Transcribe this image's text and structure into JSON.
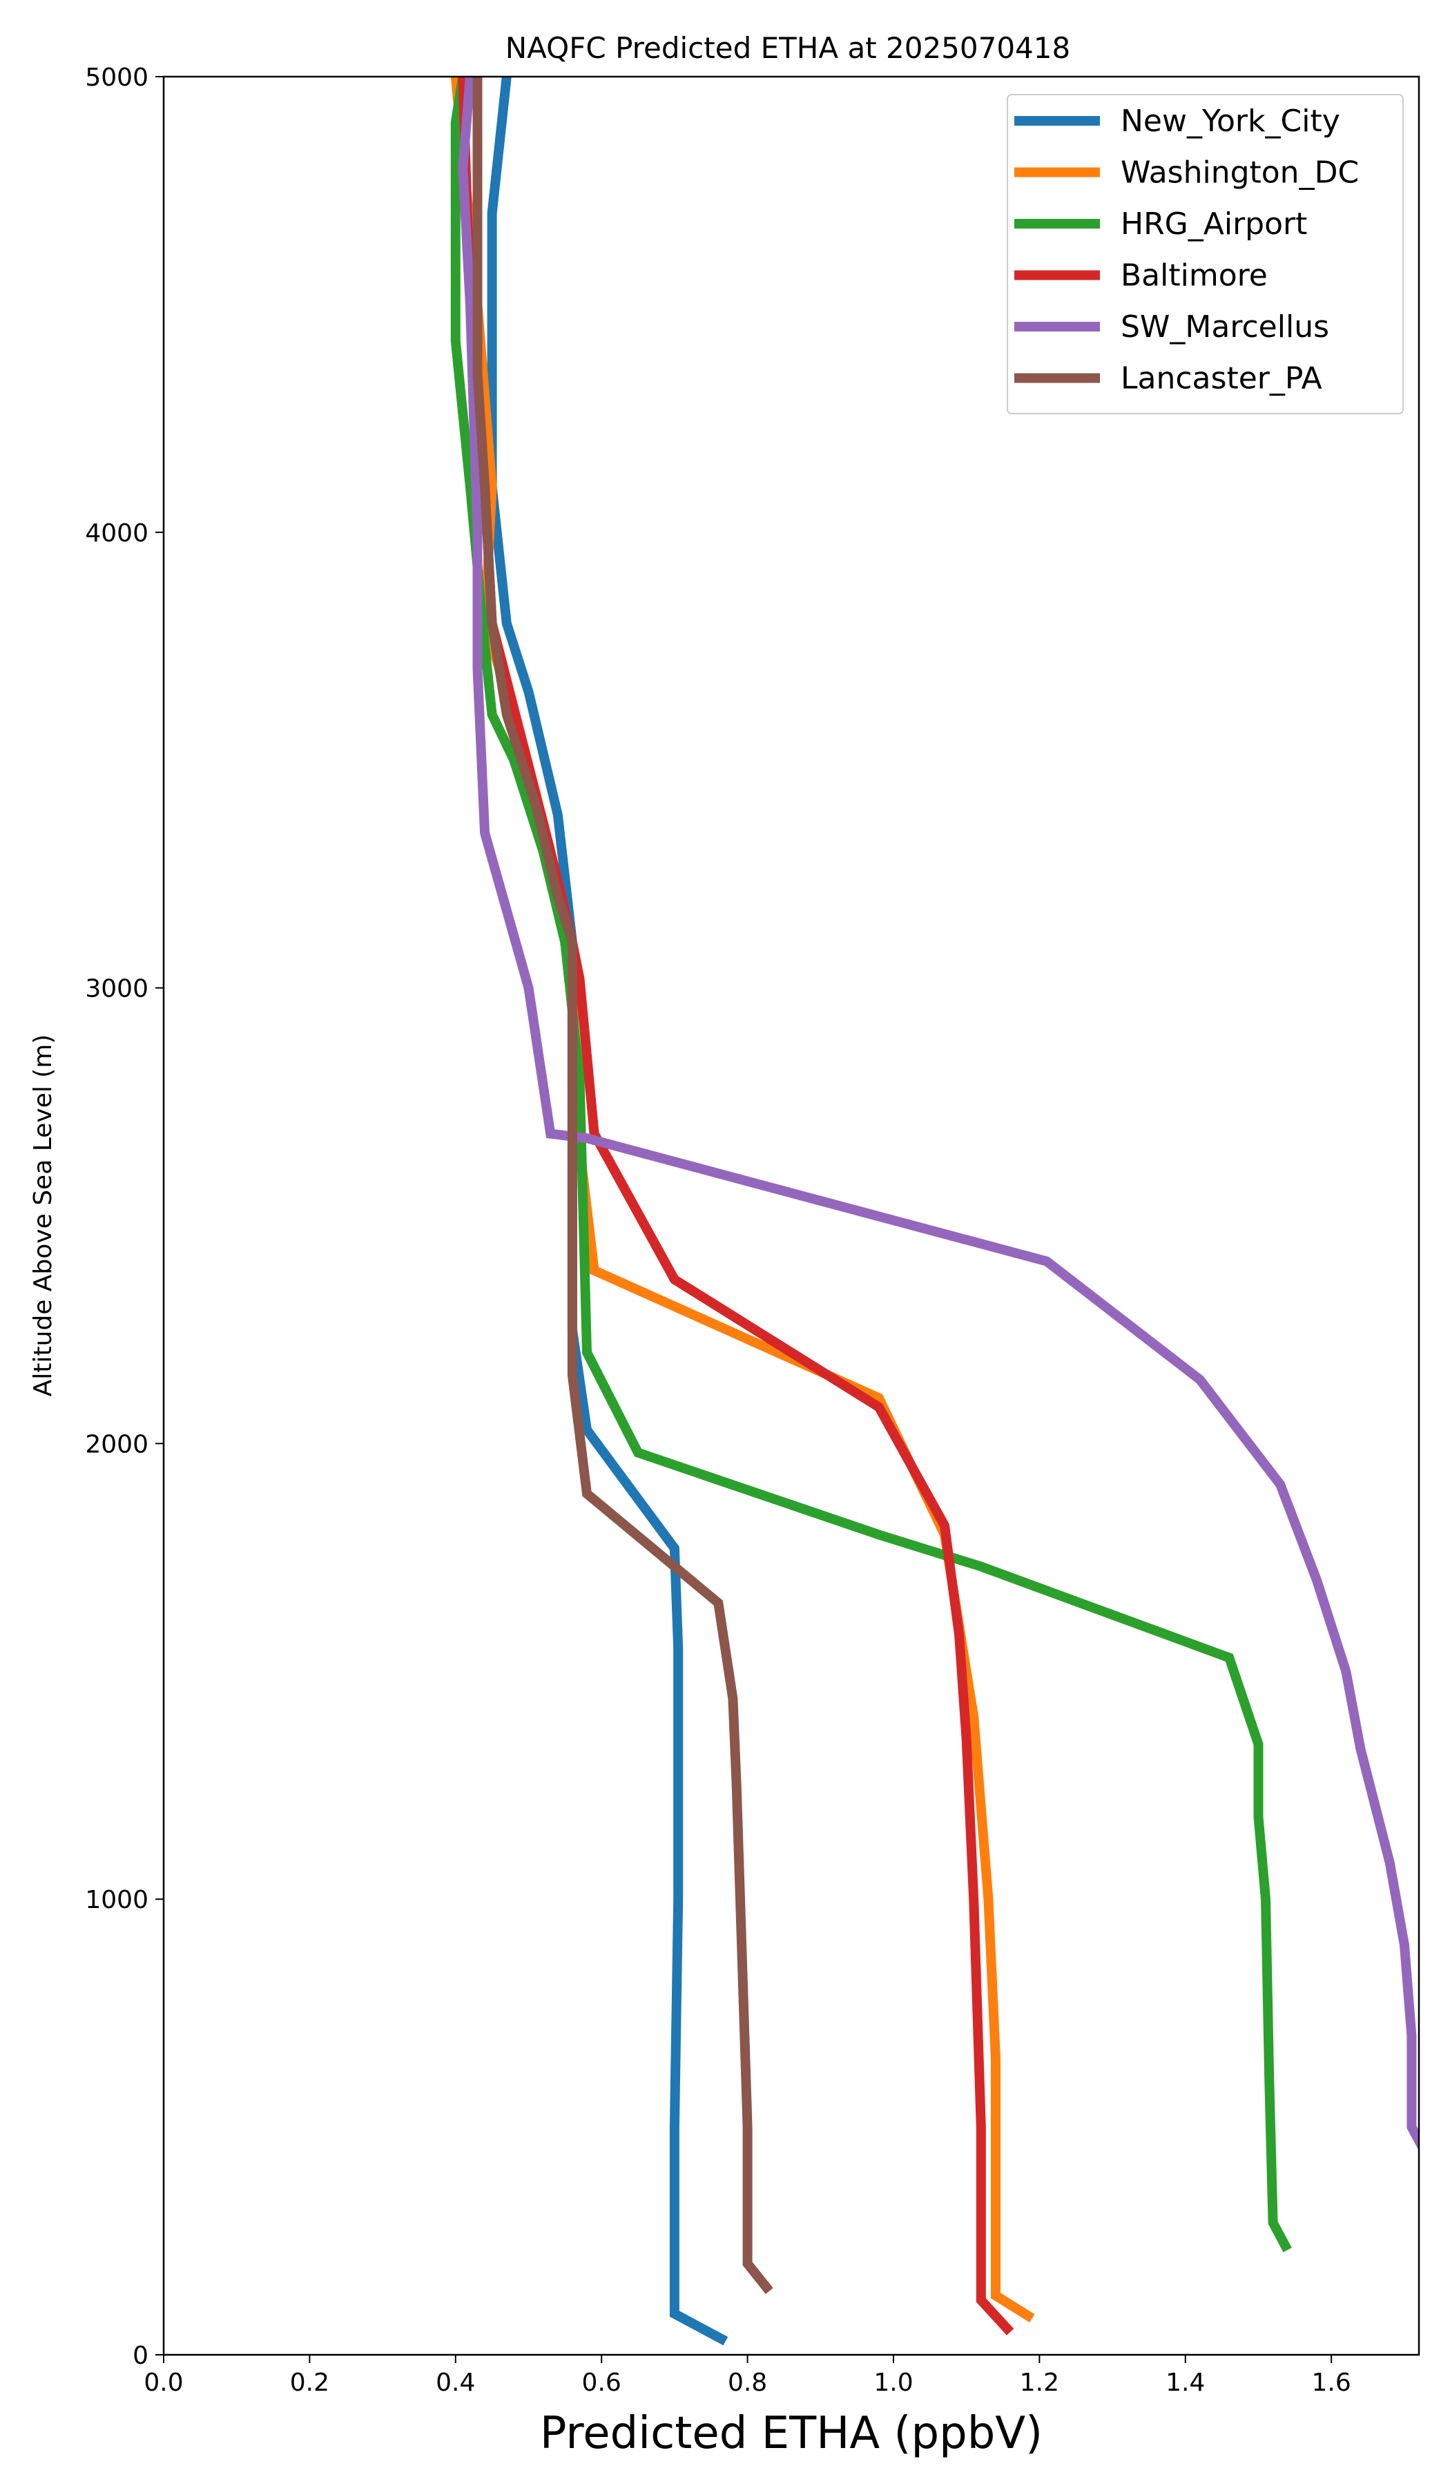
{
  "chart_data": {
    "type": "line",
    "title": "NAQFC Predicted ETHA at 2025070418",
    "xlabel": "Predicted ETHA (ppbV)",
    "ylabel": "Altitude Above Sea Level (m)",
    "xlim": [
      0.0,
      1.72
    ],
    "ylim": [
      0,
      5000
    ],
    "xticks": [
      "0.0",
      "0.2",
      "0.4",
      "0.6",
      "0.8",
      "1.0",
      "1.2",
      "1.4",
      "1.6"
    ],
    "yticks": [
      "0",
      "1000",
      "2000",
      "3000",
      "4000",
      "5000"
    ],
    "grid": false,
    "legend_position": "top-right",
    "series": [
      {
        "name": "New_York_City",
        "color": "#1f77b4",
        "points": [
          [
            0.77,
            30
          ],
          [
            0.7,
            90
          ],
          [
            0.7,
            250
          ],
          [
            0.7,
            500
          ],
          [
            0.705,
            1000
          ],
          [
            0.705,
            1550
          ],
          [
            0.7,
            1770
          ],
          [
            0.58,
            2030
          ],
          [
            0.56,
            2250
          ],
          [
            0.56,
            2700
          ],
          [
            0.56,
            3100
          ],
          [
            0.54,
            3380
          ],
          [
            0.5,
            3650
          ],
          [
            0.47,
            3800
          ],
          [
            0.45,
            4100
          ],
          [
            0.45,
            4450
          ],
          [
            0.45,
            4700
          ],
          [
            0.47,
            5000
          ]
        ]
      },
      {
        "name": "Washington_DC",
        "color": "#ff7f0e",
        "points": [
          [
            1.19,
            80
          ],
          [
            1.14,
            130
          ],
          [
            1.14,
            300
          ],
          [
            1.14,
            650
          ],
          [
            1.13,
            1000
          ],
          [
            1.11,
            1400
          ],
          [
            1.09,
            1600
          ],
          [
            1.07,
            1800
          ],
          [
            0.98,
            2100
          ],
          [
            0.59,
            2380
          ],
          [
            0.57,
            2650
          ],
          [
            0.56,
            3000
          ],
          [
            0.53,
            3300
          ],
          [
            0.49,
            3550
          ],
          [
            0.44,
            3800
          ],
          [
            0.45,
            4100
          ],
          [
            0.43,
            4500
          ],
          [
            0.4,
            5000
          ]
        ]
      },
      {
        "name": "HRG_Airport",
        "color": "#2ca02c",
        "points": [
          [
            1.54,
            230
          ],
          [
            1.52,
            290
          ],
          [
            1.515,
            600
          ],
          [
            1.51,
            1000
          ],
          [
            1.5,
            1180
          ],
          [
            1.5,
            1340
          ],
          [
            1.46,
            1530
          ],
          [
            1.12,
            1730
          ],
          [
            0.98,
            1800
          ],
          [
            0.65,
            1980
          ],
          [
            0.58,
            2200
          ],
          [
            0.57,
            2800
          ],
          [
            0.55,
            3100
          ],
          [
            0.52,
            3300
          ],
          [
            0.48,
            3500
          ],
          [
            0.45,
            3600
          ],
          [
            0.44,
            3750
          ],
          [
            0.42,
            4100
          ],
          [
            0.4,
            4420
          ],
          [
            0.4,
            4900
          ],
          [
            0.41,
            5000
          ]
        ]
      },
      {
        "name": "Baltimore",
        "color": "#d62728",
        "points": [
          [
            1.16,
            50
          ],
          [
            1.12,
            120
          ],
          [
            1.12,
            180
          ],
          [
            1.12,
            500
          ],
          [
            1.11,
            1000
          ],
          [
            1.1,
            1350
          ],
          [
            1.09,
            1580
          ],
          [
            1.07,
            1820
          ],
          [
            0.98,
            2080
          ],
          [
            0.7,
            2360
          ],
          [
            0.59,
            2680
          ],
          [
            0.57,
            3020
          ],
          [
            0.56,
            3100
          ],
          [
            0.53,
            3300
          ],
          [
            0.49,
            3550
          ],
          [
            0.45,
            3800
          ],
          [
            0.44,
            4100
          ],
          [
            0.42,
            4500
          ],
          [
            0.41,
            5000
          ]
        ]
      },
      {
        "name": "SW_Marcellus",
        "color": "#9467bd",
        "points": [
          [
            1.73,
            440
          ],
          [
            1.71,
            500
          ],
          [
            1.71,
            700
          ],
          [
            1.7,
            900
          ],
          [
            1.68,
            1080
          ],
          [
            1.64,
            1330
          ],
          [
            1.62,
            1500
          ],
          [
            1.58,
            1700
          ],
          [
            1.53,
            1910
          ],
          [
            1.42,
            2140
          ],
          [
            1.21,
            2400
          ],
          [
            0.58,
            2670
          ],
          [
            0.53,
            2680
          ],
          [
            0.5,
            3000
          ],
          [
            0.44,
            3340
          ],
          [
            0.43,
            3700
          ],
          [
            0.43,
            4000
          ],
          [
            0.42,
            4500
          ],
          [
            0.41,
            4800
          ],
          [
            0.42,
            5000
          ]
        ]
      },
      {
        "name": "Lancaster_PA",
        "color": "#8c564b",
        "points": [
          [
            0.83,
            140
          ],
          [
            0.8,
            200
          ],
          [
            0.8,
            500
          ],
          [
            0.79,
            1000
          ],
          [
            0.785,
            1250
          ],
          [
            0.78,
            1440
          ],
          [
            0.76,
            1650
          ],
          [
            0.7,
            1730
          ],
          [
            0.58,
            1890
          ],
          [
            0.56,
            2150
          ],
          [
            0.56,
            2600
          ],
          [
            0.56,
            3100
          ],
          [
            0.54,
            3200
          ],
          [
            0.51,
            3400
          ],
          [
            0.47,
            3600
          ],
          [
            0.45,
            3800
          ],
          [
            0.44,
            4100
          ],
          [
            0.43,
            4350
          ],
          [
            0.43,
            4700
          ],
          [
            0.43,
            5000
          ]
        ]
      }
    ]
  }
}
